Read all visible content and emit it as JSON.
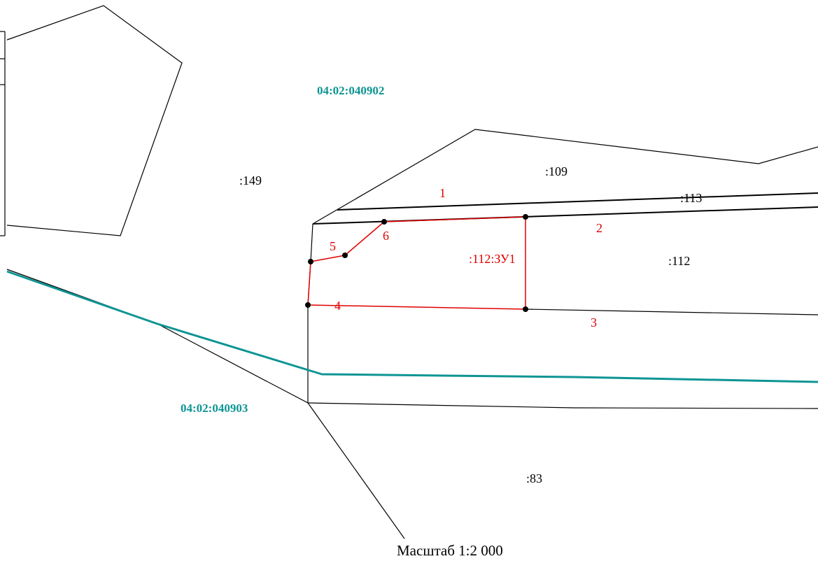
{
  "colors": {
    "boundary": "#000000",
    "plot": "#e00000",
    "quarter": "#0e9494",
    "background": "#ffffff"
  },
  "quarters": {
    "north": "04:02:040902",
    "south": "04:02:040903"
  },
  "parcels": {
    "p149": ":149",
    "p109": ":109",
    "p113": ":113",
    "p112": ":112",
    "p83": ":83"
  },
  "new_plot": {
    "label": ":112:ЗУ1",
    "points": [
      "1",
      "2",
      "3",
      "4",
      "5",
      "6"
    ]
  },
  "scale": "Масштаб 1:2 000"
}
